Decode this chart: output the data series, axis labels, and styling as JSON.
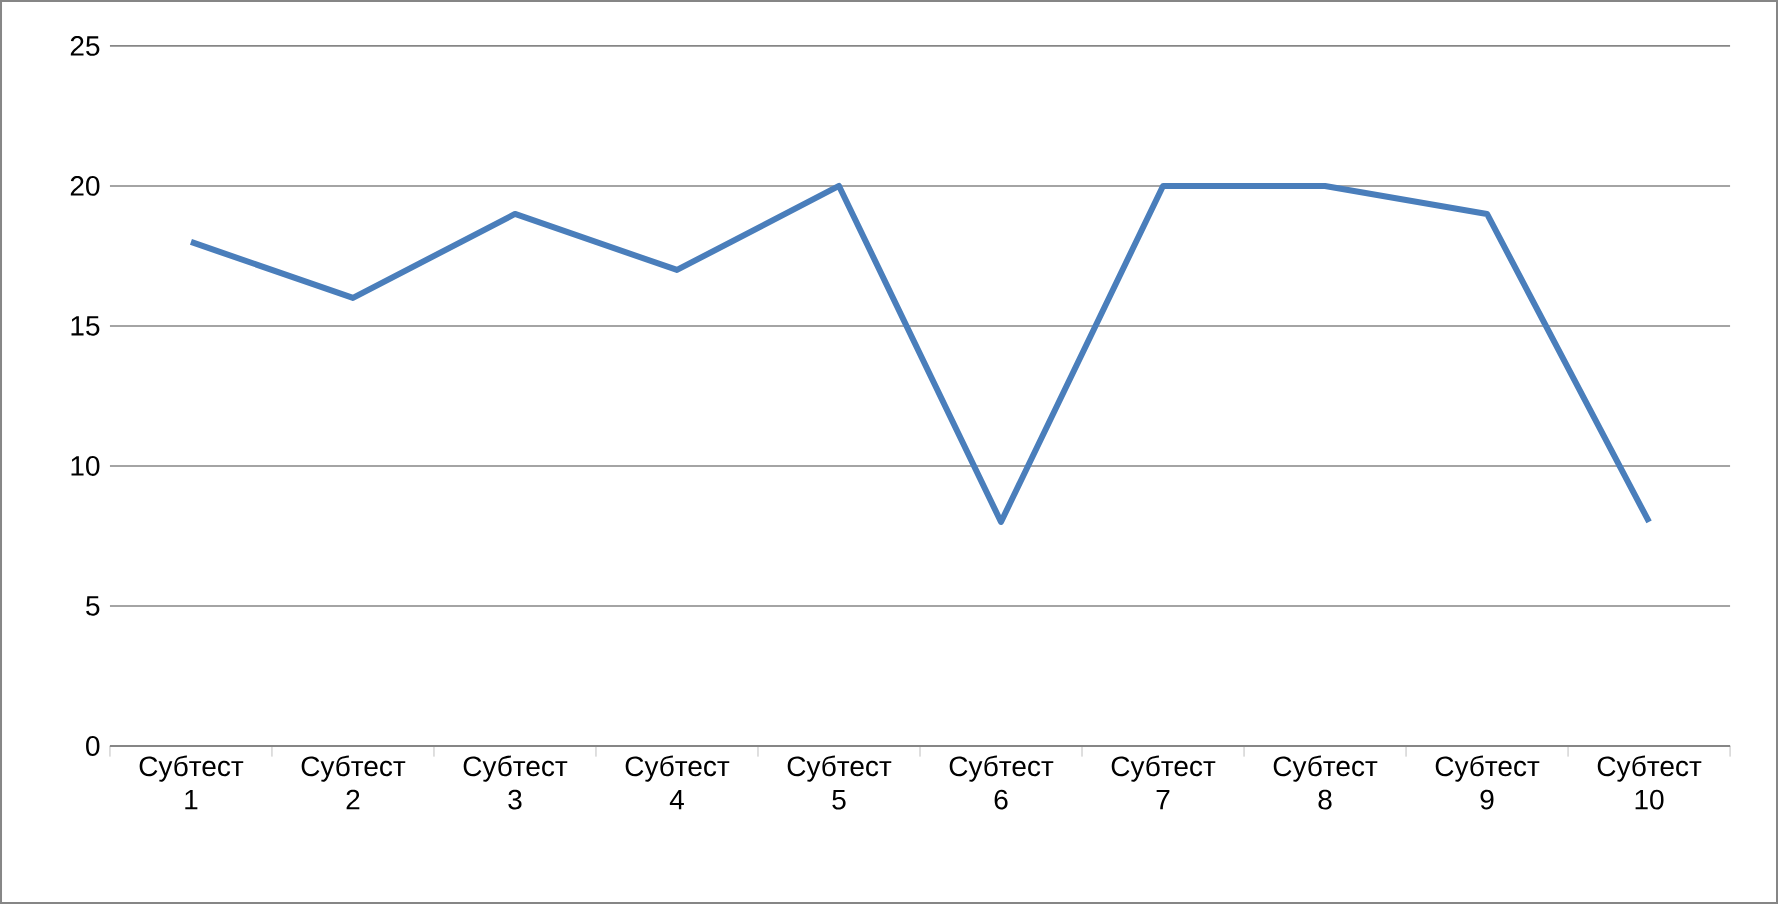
{
  "chart_data": {
    "type": "line",
    "categories": [
      "Субтест 1",
      "Субтест 2",
      "Субтест 3",
      "Субтест 4",
      "Субтест 5",
      "Субтест 6",
      "Субтест 7",
      "Субтест 8",
      "Субтест 9",
      "Субтест 10"
    ],
    "values": [
      18,
      16,
      19,
      17,
      20,
      8,
      20,
      20,
      19,
      8
    ],
    "color": "#4a7ebb",
    "ylim": [
      0,
      25
    ],
    "yticks": [
      0,
      5,
      10,
      15,
      20,
      25
    ],
    "grid": "y",
    "marker": "none"
  }
}
